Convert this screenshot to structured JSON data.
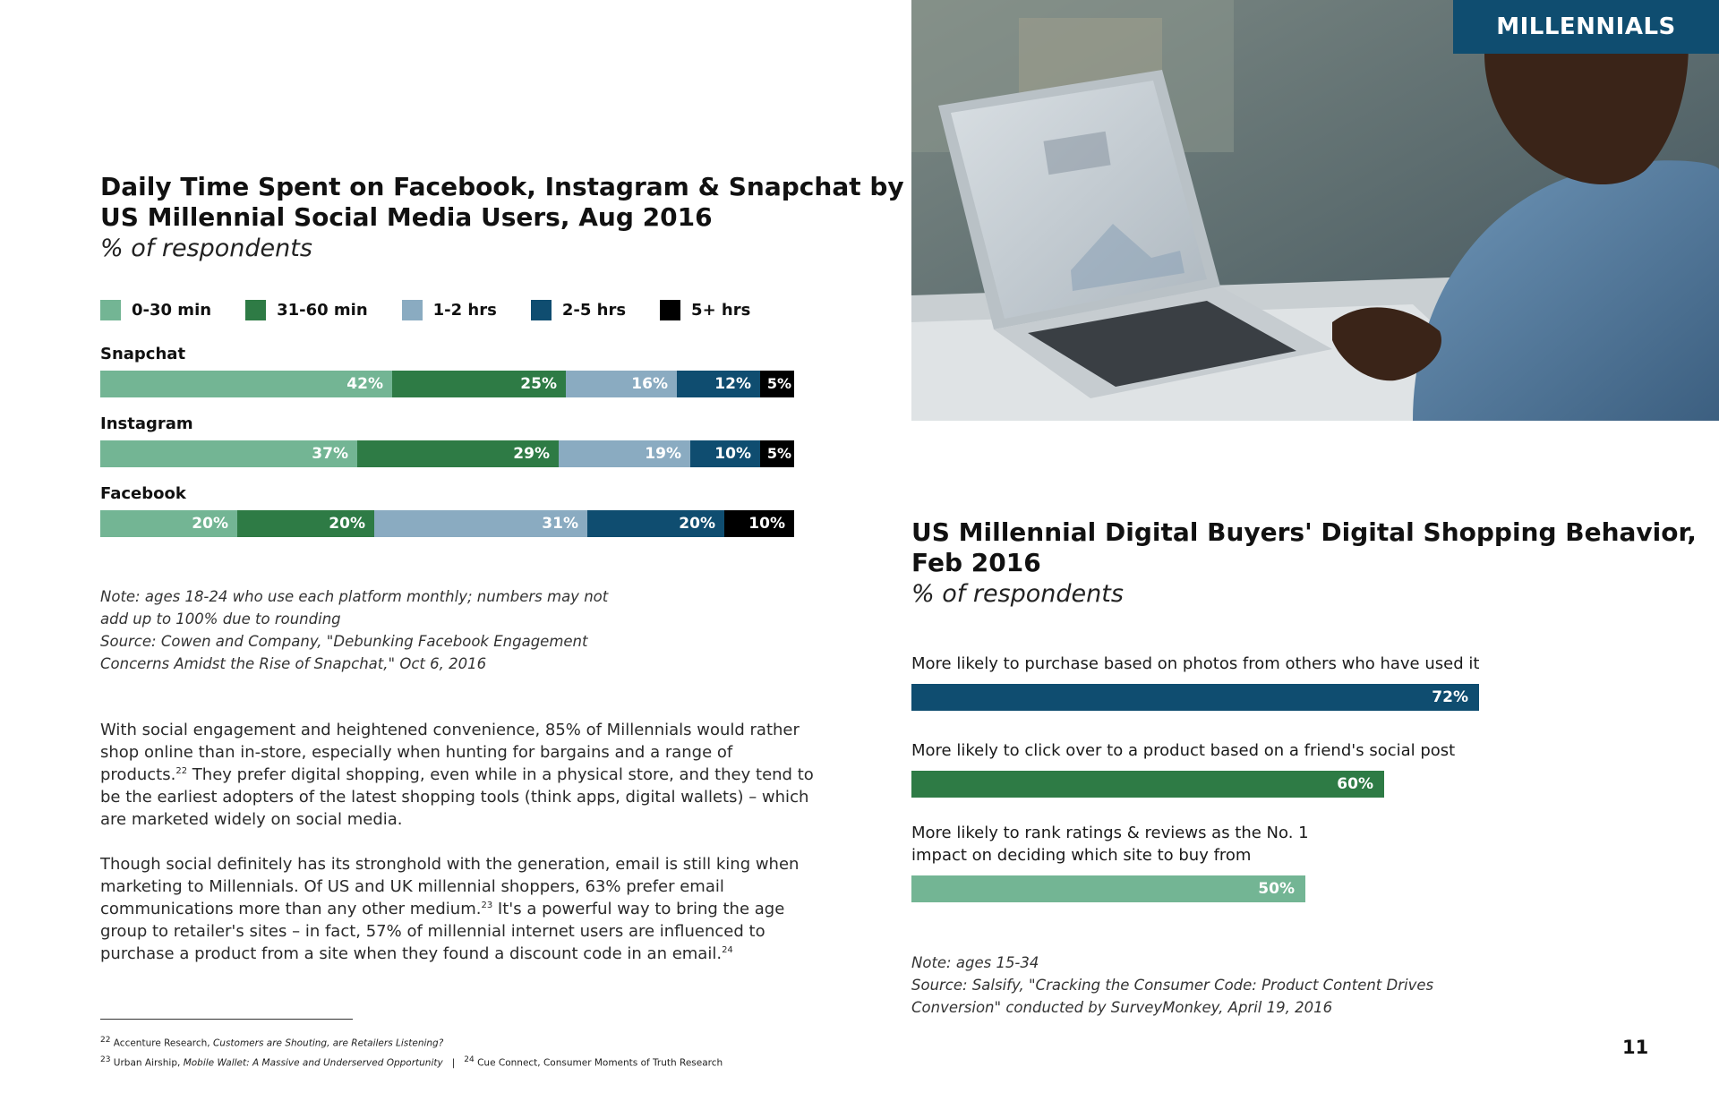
{
  "section_badge": "MILLENNIALS",
  "page_number": "11",
  "colors": {
    "c0_30": "#73b594",
    "c31_60": "#2e7b45",
    "c1_2": "#8aabc1",
    "c2_5": "#0f4d70",
    "c5plus": "#000000"
  },
  "photo": {
    "icon": "laptop-user-photo"
  },
  "chart1": {
    "title_line1": "Daily Time Spent on Facebook, Instagram & Snapchat by",
    "title_line2": "US Millennial Social Media Users, Aug 2016",
    "subtitle": "% of respondents",
    "legend": [
      "0-30 min",
      "31-60 min",
      "1-2 hrs",
      "2-5 hrs",
      "5+ hrs"
    ],
    "rows": [
      {
        "platform": "Snapchat",
        "labels": [
          "42%",
          "25%",
          "16%",
          "12%",
          "5%"
        ]
      },
      {
        "platform": "Instagram",
        "labels": [
          "37%",
          "29%",
          "19%",
          "10%",
          "5%"
        ]
      },
      {
        "platform": "Facebook",
        "labels": [
          "20%",
          "20%",
          "31%",
          "20%",
          "10%"
        ]
      }
    ],
    "note_line1": "Note: ages 18-24 who use each platform monthly; numbers may not",
    "note_line2": "add up to 100% due to rounding",
    "source_line1": "Source: Cowen and Company, \"Debunking Facebook Engagement",
    "source_line2": "Concerns Amidst the Rise of Snapchat,\" Oct 6, 2016"
  },
  "chart2": {
    "title_line1": "US Millennial Digital Buyers' Digital Shopping Behavior,",
    "title_line2": "Feb 2016",
    "subtitle": "% of respondents",
    "items": [
      {
        "label_line1": "More likely to purchase based on photos from others who have used it",
        "label_line2": "",
        "label": "72%"
      },
      {
        "label_line1": "More likely to click over to a product based on a friend's social post",
        "label_line2": "",
        "label": "60%"
      },
      {
        "label_line1": "More likely to rank ratings & reviews as the No. 1",
        "label_line2": "impact on deciding which site to buy from",
        "label": "50%"
      }
    ],
    "note": "Note: ages 15-34",
    "source_line1": "Source: Salsify, \"Cracking the Consumer Code: Product Content Drives",
    "source_line2": "Conversion\" conducted by SurveyMonkey, April 19, 2016"
  },
  "body": {
    "p1": "With social engagement and heightened convenience, 85% of Millennials would rather shop online than in-store, especially when hunting for bargains and a range of products.",
    "p1_sup": "22",
    "p1_rest": "  They prefer digital shopping, even while in a physical store, and they tend to be the earliest adopters of the latest shopping tools (think apps, digital wallets) – which are marketed widely on social media.",
    "p2": "Though social definitely has its stronghold with the generation, email is still king when marketing to Millennials. Of US and UK millennial shoppers, 63% prefer email communications more than any other medium.",
    "p2_sup1": "23",
    "p2_mid": "  It's a powerful way to bring the age group to retailer's sites – in fact, 57% of millennial internet users are influenced to purchase a product from a site when they found a discount code in an email.",
    "p2_sup2": "24"
  },
  "footnotes": {
    "n22": "22",
    "f22_src": "Accenture Research, ",
    "f22_title": "Customers are Shouting, are Retailers Listening?",
    "n23": "23",
    "f23_src": "Urban Airship, ",
    "f23_title": "Mobile Wallet: A Massive and Underserved Opportunity",
    "sep": "|",
    "n24": "24",
    "f24_src": "Cue Connect, Consumer Moments of Truth Research"
  },
  "chart_data": [
    {
      "type": "bar",
      "orientation": "horizontal-stacked",
      "title": "Daily Time Spent on Facebook, Instagram & Snapchat by US Millennial Social Media Users, Aug 2016",
      "subtitle": "% of respondents",
      "categories": [
        "Snapchat",
        "Instagram",
        "Facebook"
      ],
      "series": [
        {
          "name": "0-30 min",
          "values": [
            42,
            37,
            20
          ]
        },
        {
          "name": "31-60 min",
          "values": [
            25,
            29,
            20
          ]
        },
        {
          "name": "1-2 hrs",
          "values": [
            16,
            19,
            31
          ]
        },
        {
          "name": "2-5 hrs",
          "values": [
            12,
            10,
            20
          ]
        },
        {
          "name": "5+ hrs",
          "values": [
            5,
            5,
            10
          ]
        }
      ],
      "legend": "top-left",
      "grid": false
    },
    {
      "type": "bar",
      "orientation": "horizontal",
      "title": "US Millennial Digital Buyers' Digital Shopping Behavior, Feb 2016",
      "subtitle": "% of respondents",
      "categories": [
        "More likely to purchase based on photos from others who have used it",
        "More likely to click over to a product based on a friend's social post",
        "More likely to rank ratings & reviews as the No. 1 impact on deciding which site to buy from"
      ],
      "values": [
        72,
        60,
        50
      ],
      "xlim": [
        0,
        100
      ],
      "grid": false
    }
  ]
}
